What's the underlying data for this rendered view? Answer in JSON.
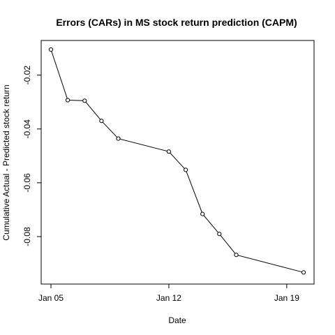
{
  "chart_data": {
    "type": "line",
    "title": "Errors (CARs) in MS stock return prediction (CAPM)",
    "xlabel": "Date",
    "ylabel": "Cumulative Actual - Predicted stock return",
    "x_tick_labels": [
      "Jan 05",
      "Jan 12",
      "Jan 19"
    ],
    "x_ticks": [
      "2015-01-05",
      "2015-01-12",
      "2015-01-19"
    ],
    "y_ticks": [
      -0.02,
      -0.04,
      -0.06,
      -0.08
    ],
    "y_tick_labels": [
      "-0.02",
      "-0.04",
      "-0.06",
      "-0.08"
    ],
    "xlim": [
      "2015-01-05",
      "2015-01-20"
    ],
    "ylim": [
      -0.094,
      -0.0105
    ],
    "grid": false,
    "series": [
      {
        "marker": "open-circle",
        "points": [
          {
            "x": "2015-01-05",
            "y": -0.0105
          },
          {
            "x": "2015-01-06",
            "y": -0.0293
          },
          {
            "x": "2015-01-07",
            "y": -0.0295
          },
          {
            "x": "2015-01-08",
            "y": -0.037
          },
          {
            "x": "2015-01-09",
            "y": -0.0436
          },
          {
            "x": "2015-01-12",
            "y": -0.0484
          },
          {
            "x": "2015-01-13",
            "y": -0.0552
          },
          {
            "x": "2015-01-14",
            "y": -0.0716
          },
          {
            "x": "2015-01-15",
            "y": -0.079
          },
          {
            "x": "2015-01-16",
            "y": -0.0868
          },
          {
            "x": "2015-01-20",
            "y": -0.0933
          }
        ]
      }
    ]
  }
}
